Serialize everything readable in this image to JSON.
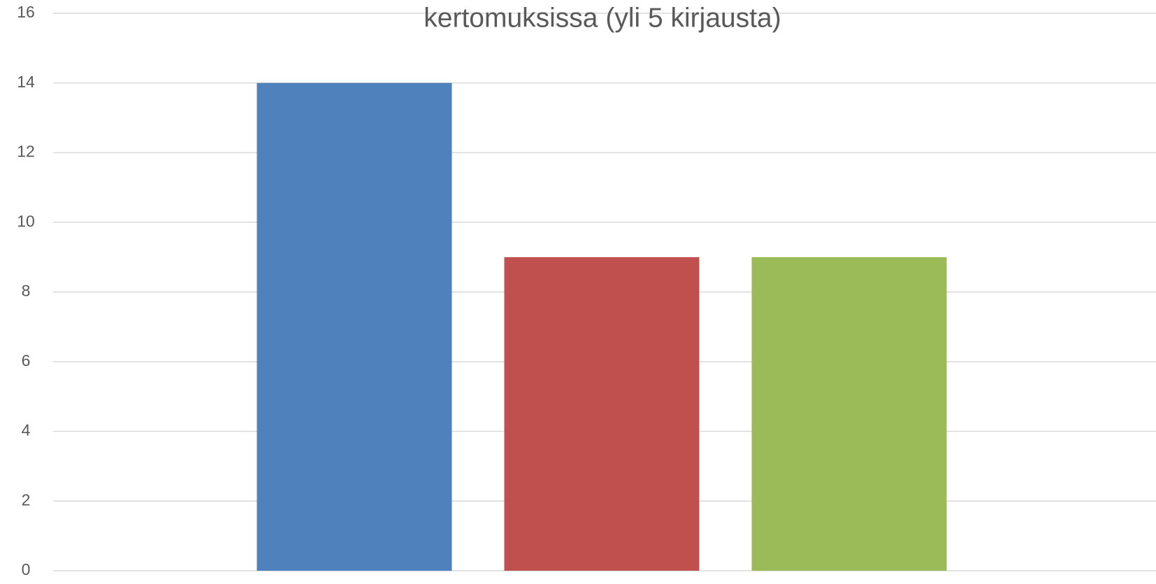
{
  "chart_data": {
    "type": "bar",
    "title": "kertomuksissa (yli 5 kirjausta)",
    "series": [
      {
        "color": "#4f81bd",
        "values": [
          14
        ]
      },
      {
        "color": "#c0504d",
        "values": [
          9
        ]
      },
      {
        "color": "#9bbb59",
        "values": [
          9
        ]
      }
    ],
    "ylim": [
      0,
      16
    ],
    "yticks": [
      0,
      2,
      4,
      6,
      8,
      10,
      12,
      14,
      16
    ],
    "grid": true
  }
}
